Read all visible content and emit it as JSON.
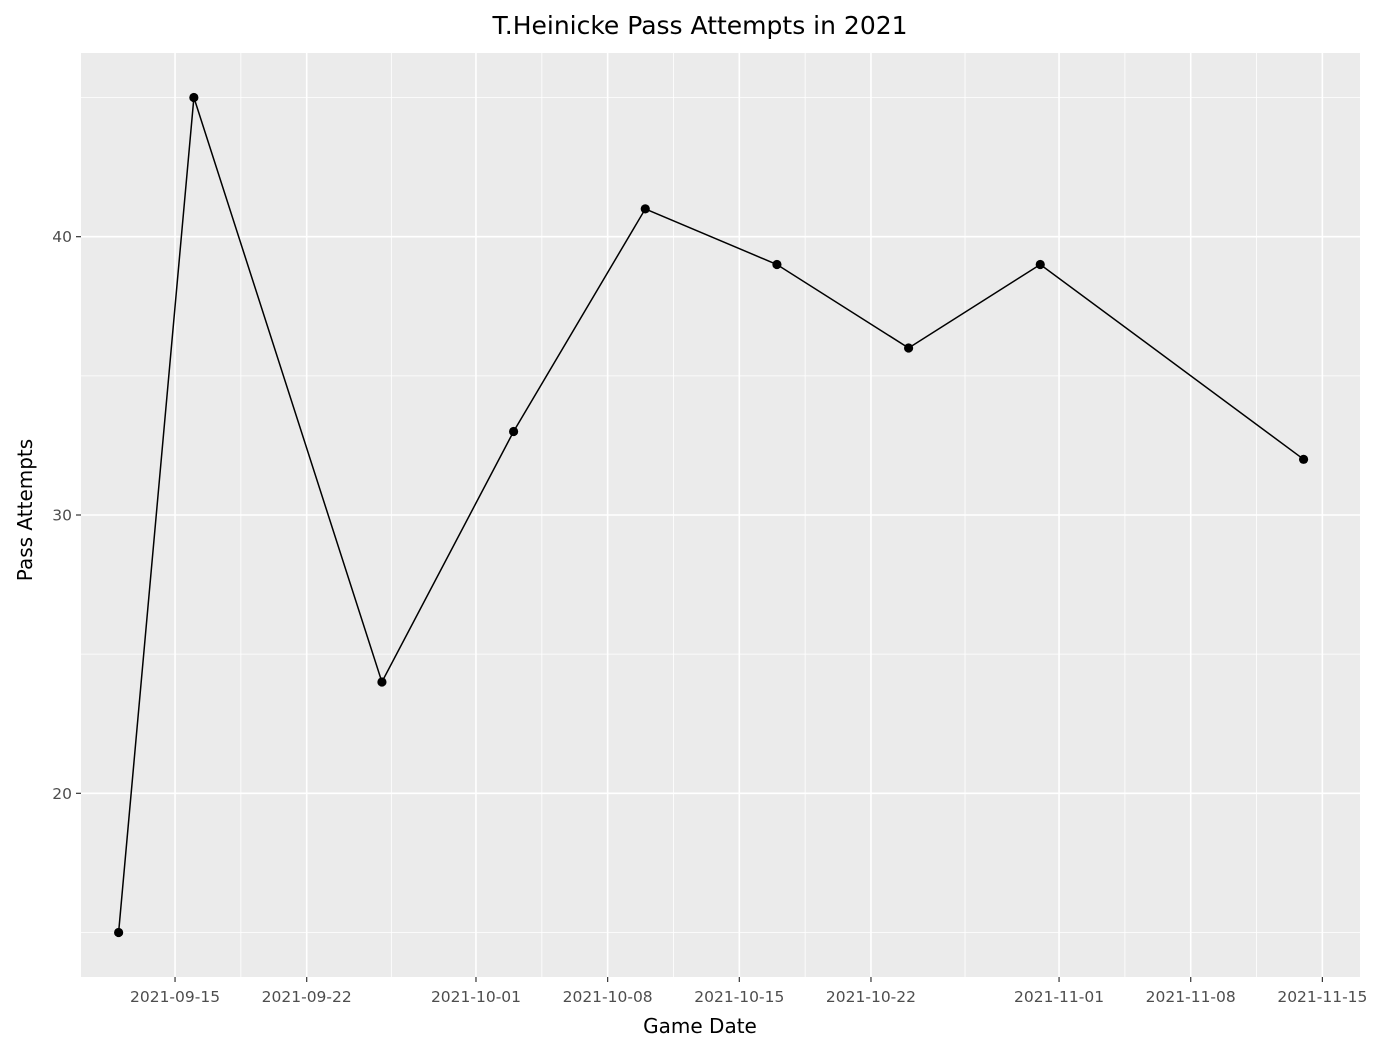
{
  "chart_data": {
    "type": "line",
    "title": "T.Heinicke Pass Attempts in 2021",
    "xlabel": "Game Date",
    "ylabel": "Pass Attempts",
    "x_ticks": [
      "2021-09-15",
      "2021-09-22",
      "2021-10-01",
      "2021-10-08",
      "2021-10-15",
      "2021-10-22",
      "2021-11-01",
      "2021-11-08",
      "2021-11-15"
    ],
    "y_ticks": [
      20,
      30,
      40
    ],
    "xlim": [
      "2021-09-10",
      "2021-11-17"
    ],
    "ylim": [
      13.4,
      46.6
    ],
    "grid": true,
    "background": "#ebebeb",
    "line_color": "#000000",
    "points": [
      {
        "x": "2021-09-12",
        "y": 15
      },
      {
        "x": "2021-09-16",
        "y": 45
      },
      {
        "x": "2021-09-26",
        "y": 24
      },
      {
        "x": "2021-10-03",
        "y": 33
      },
      {
        "x": "2021-10-10",
        "y": 41
      },
      {
        "x": "2021-10-17",
        "y": 39
      },
      {
        "x": "2021-10-24",
        "y": 36
      },
      {
        "x": "2021-10-31",
        "y": 39
      },
      {
        "x": "2021-11-14",
        "y": 32
      }
    ]
  }
}
